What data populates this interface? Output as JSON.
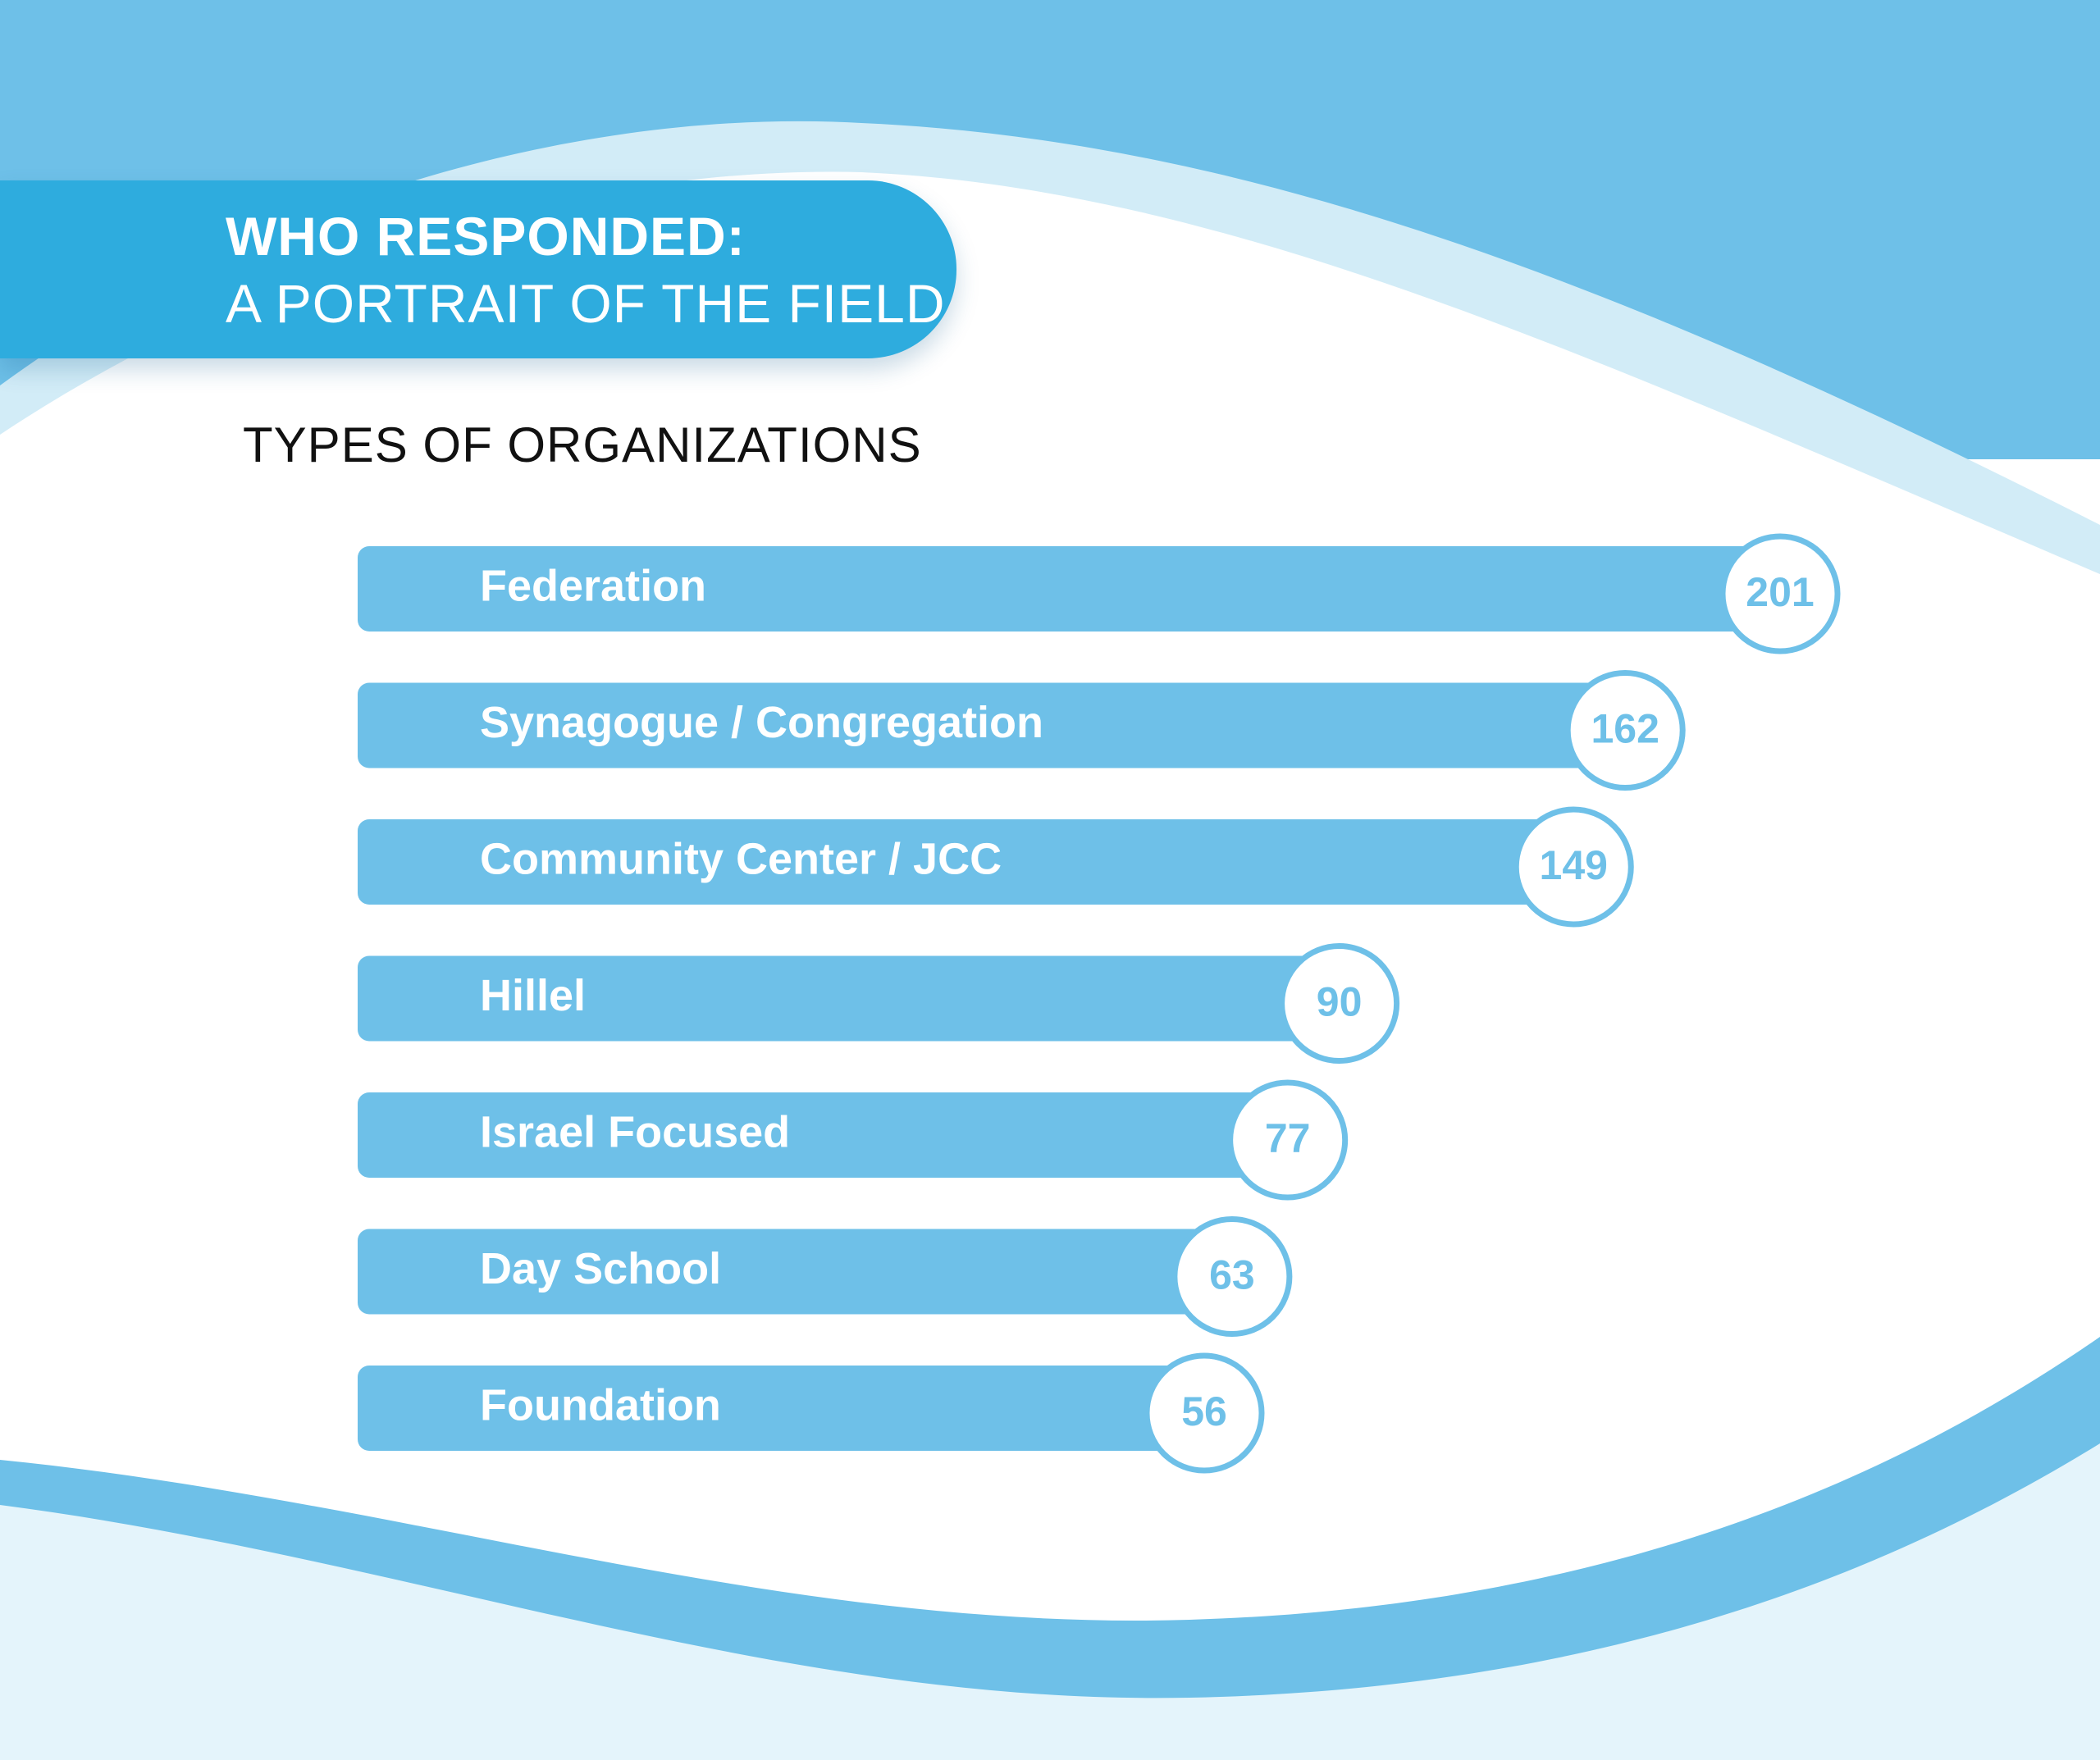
{
  "header": {
    "line1": "WHO RESPONDED:",
    "line2": "A PORTRAIT OF THE FIELD"
  },
  "colors": {
    "bar": "#6ec0e8",
    "badge_ring": "#6ec0e8",
    "badge_fill": "#ffffff",
    "header_banner": "#2eacde",
    "background_wave": "#6ec0e8",
    "background_wave_light": "#d2ecf7",
    "footer_bg": "#e4f4fb"
  },
  "chart_data": {
    "type": "bar",
    "orientation": "horizontal",
    "title": "TYPES OF ORGANIZATIONS",
    "xlabel": "",
    "ylabel": "",
    "xlim": [
      0,
      201
    ],
    "grid": false,
    "categories": [
      "Federation",
      "Synagogue / Congregation",
      "Community Center / JCC",
      "Hillel",
      "Israel Focused",
      "Day School",
      "Foundation"
    ],
    "values": [
      201,
      162,
      149,
      90,
      77,
      63,
      56
    ]
  }
}
